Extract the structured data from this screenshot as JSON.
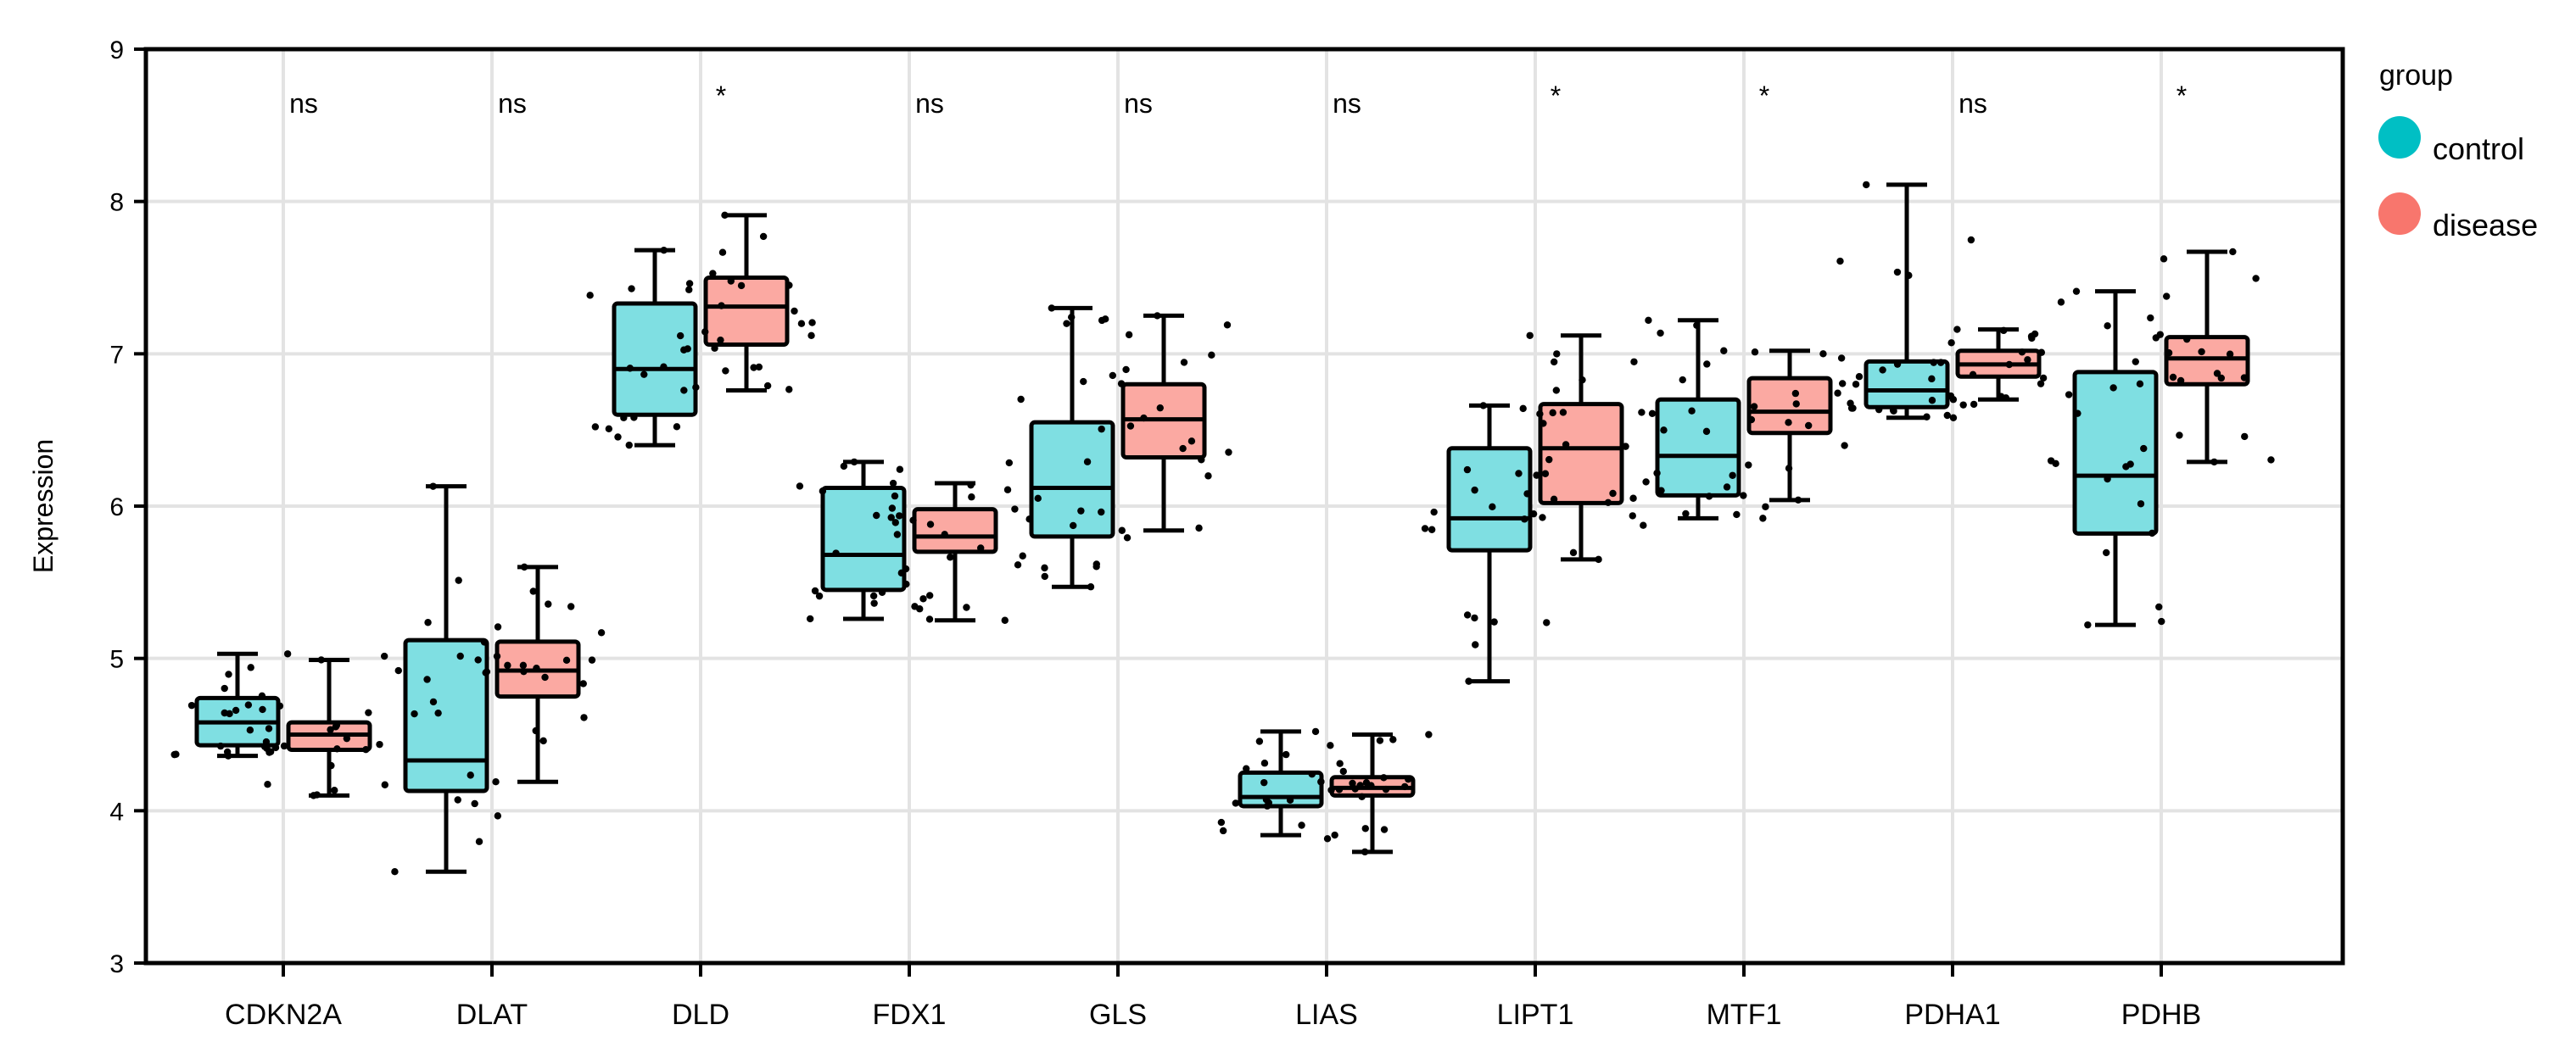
{
  "chart_data": {
    "type": "boxplot",
    "title": "",
    "xlabel": "",
    "ylabel": "Expression",
    "ylim": [
      3,
      9
    ],
    "yticks": [
      3,
      4,
      5,
      6,
      7,
      8,
      9
    ],
    "grid": true,
    "categories": [
      "CDKN2A",
      "DLAT",
      "DLD",
      "FDX1",
      "GLS",
      "LIAS",
      "LIPT1",
      "MTF1",
      "PDHA1",
      "PDHB"
    ],
    "significance": [
      "ns",
      "ns",
      "*",
      "ns",
      "ns",
      "ns",
      "*",
      "*",
      "ns",
      "*"
    ],
    "legend": {
      "title": "group",
      "position": "right",
      "entries": [
        {
          "label": "control",
          "color": "#00BFC4"
        },
        {
          "label": "disease",
          "color": "#F8766D"
        }
      ]
    },
    "series": [
      {
        "name": "control",
        "fill": "#7FDFE2",
        "boxes": [
          {
            "min": 4.36,
            "q1": 4.43,
            "median": 4.58,
            "q3": 4.74,
            "max": 5.03
          },
          {
            "min": 3.6,
            "q1": 4.13,
            "median": 4.33,
            "q3": 5.12,
            "max": 6.13
          },
          {
            "min": 6.4,
            "q1": 6.6,
            "median": 6.9,
            "q3": 7.33,
            "max": 7.68
          },
          {
            "min": 5.26,
            "q1": 5.45,
            "median": 5.68,
            "q3": 6.12,
            "max": 6.29
          },
          {
            "min": 5.47,
            "q1": 5.8,
            "median": 6.12,
            "q3": 6.55,
            "max": 7.3
          },
          {
            "min": 3.84,
            "q1": 4.03,
            "median": 4.09,
            "q3": 4.25,
            "max": 4.52
          },
          {
            "min": 4.85,
            "q1": 5.71,
            "median": 5.92,
            "q3": 6.38,
            "max": 6.66
          },
          {
            "min": 5.92,
            "q1": 6.07,
            "median": 6.33,
            "q3": 6.7,
            "max": 7.22
          },
          {
            "min": 6.58,
            "q1": 6.65,
            "median": 6.76,
            "q3": 6.95,
            "max": 8.11
          },
          {
            "min": 5.22,
            "q1": 5.82,
            "median": 6.2,
            "q3": 6.88,
            "max": 7.41
          }
        ]
      },
      {
        "name": "disease",
        "fill": "#FBA9A2",
        "boxes": [
          {
            "min": 4.1,
            "q1": 4.4,
            "median": 4.5,
            "q3": 4.58,
            "max": 4.99
          },
          {
            "min": 4.19,
            "q1": 4.75,
            "median": 4.92,
            "q3": 5.11,
            "max": 5.6
          },
          {
            "min": 6.76,
            "q1": 7.06,
            "median": 7.31,
            "q3": 7.5,
            "max": 7.91
          },
          {
            "min": 5.25,
            "q1": 5.7,
            "median": 5.8,
            "q3": 5.98,
            "max": 6.15
          },
          {
            "min": 5.84,
            "q1": 6.32,
            "median": 6.57,
            "q3": 6.8,
            "max": 7.25
          },
          {
            "min": 3.73,
            "q1": 4.1,
            "median": 4.15,
            "q3": 4.22,
            "max": 4.5
          },
          {
            "min": 5.65,
            "q1": 6.02,
            "median": 6.38,
            "q3": 6.67,
            "max": 7.12
          },
          {
            "min": 6.04,
            "q1": 6.48,
            "median": 6.62,
            "q3": 6.84,
            "max": 7.02
          },
          {
            "min": 6.7,
            "q1": 6.85,
            "median": 6.93,
            "q3": 7.02,
            "max": 7.16
          },
          {
            "min": 6.29,
            "q1": 6.8,
            "median": 6.97,
            "q3": 7.11,
            "max": 7.67
          }
        ]
      }
    ]
  }
}
